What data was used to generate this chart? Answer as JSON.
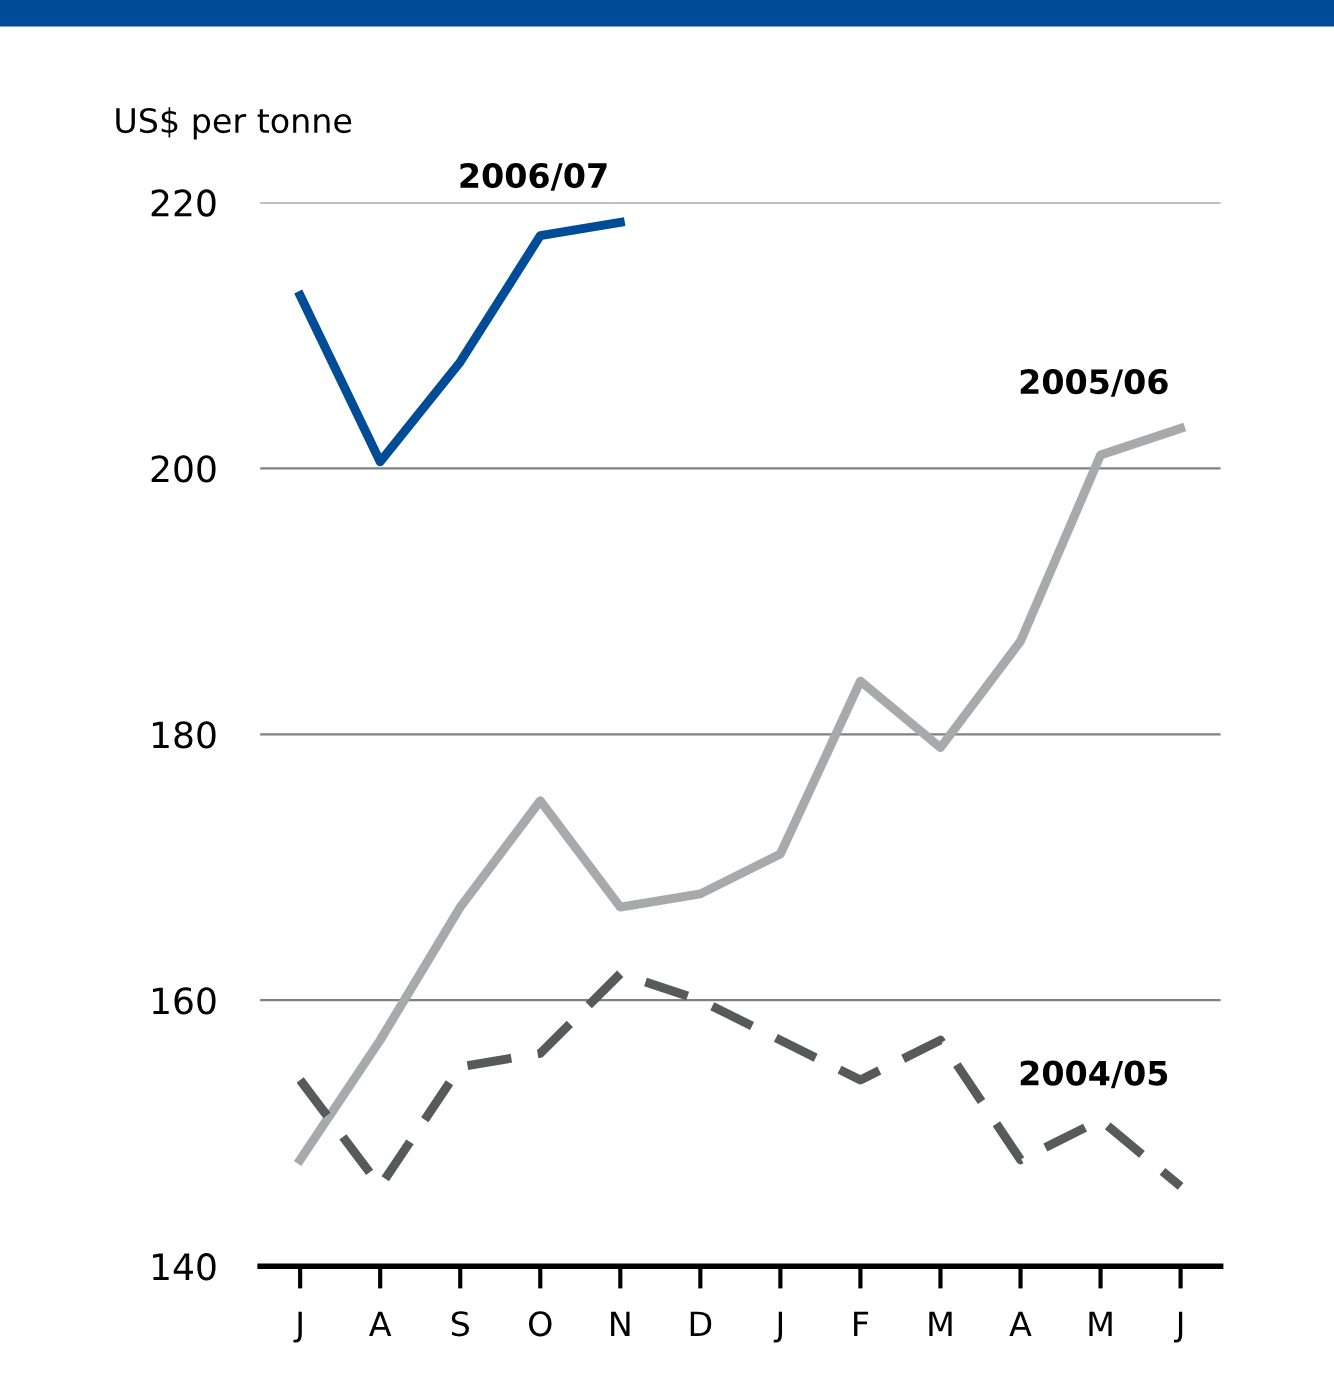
{
  "chart_data": {
    "type": "line",
    "ylabel": "US$ per tonne",
    "categories": [
      "J",
      "A",
      "S",
      "O",
      "N",
      "D",
      "J",
      "F",
      "M",
      "A",
      "M",
      "J"
    ],
    "series": [
      {
        "name": "2006/07",
        "color": "#004c97",
        "line_style": "solid",
        "values": [
          213,
          200.5,
          208,
          217.5,
          218.5,
          null,
          null,
          null,
          null,
          null,
          null,
          null
        ]
      },
      {
        "name": "2005/06",
        "color": "#a7a9ac",
        "line_style": "solid",
        "values": [
          148,
          157,
          167,
          175,
          167,
          168,
          171,
          184,
          179,
          187,
          201,
          203
        ]
      },
      {
        "name": "2004/05",
        "color": "#58595b",
        "line_style": "dashed",
        "values": [
          154,
          146,
          155,
          156,
          162,
          160,
          157,
          154,
          157,
          148,
          151,
          146
        ]
      }
    ],
    "ylim": [
      140,
      220
    ],
    "yticks": [
      140,
      160,
      180,
      200,
      220
    ],
    "grid": "y",
    "legend": false,
    "marker": "none"
  }
}
